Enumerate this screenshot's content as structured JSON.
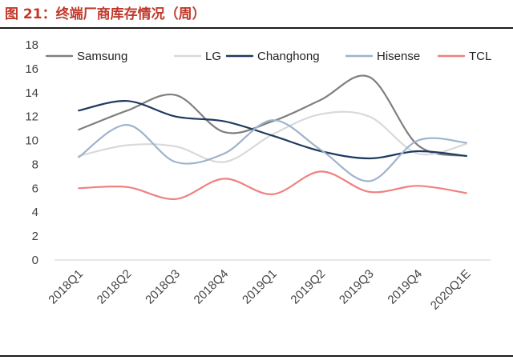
{
  "header": {
    "title": "图 21：终端厂商库存情况（周）"
  },
  "chart_data": {
    "type": "line",
    "title": "图 21：终端厂商库存情况（周）",
    "xlabel": "",
    "ylabel": "",
    "ylim": [
      0,
      18
    ],
    "yticks": [
      0,
      2,
      4,
      6,
      8,
      10,
      12,
      14,
      16,
      18
    ],
    "categories": [
      "2018Q1",
      "2018Q2",
      "2018Q3",
      "2018Q4",
      "2019Q1",
      "2019Q2",
      "2019Q3",
      "2019Q4",
      "2020Q1E"
    ],
    "legend_position": "top",
    "grid": false,
    "series": [
      {
        "name": "Samsung",
        "color": "#7f7f7f",
        "values": [
          10.9,
          12.5,
          13.8,
          10.7,
          11.6,
          13.4,
          15.3,
          9.6,
          8.7
        ]
      },
      {
        "name": "LG",
        "color": "#d9d9d9",
        "values": [
          8.7,
          9.6,
          9.5,
          8.2,
          10.5,
          12.2,
          12.0,
          8.9,
          9.7
        ]
      },
      {
        "name": "Changhong",
        "color": "#1f3a5f",
        "values": [
          12.5,
          13.3,
          12.0,
          11.6,
          10.4,
          9.1,
          8.5,
          9.1,
          8.7
        ]
      },
      {
        "name": "Hisense",
        "color": "#9eb3cc",
        "values": [
          8.6,
          11.3,
          8.2,
          8.9,
          11.7,
          9.2,
          6.6,
          10.0,
          9.8
        ]
      },
      {
        "name": "TCL",
        "color": "#f08080",
        "values": [
          6.0,
          6.1,
          5.1,
          6.8,
          5.5,
          7.4,
          5.7,
          6.2,
          5.6
        ]
      }
    ]
  }
}
